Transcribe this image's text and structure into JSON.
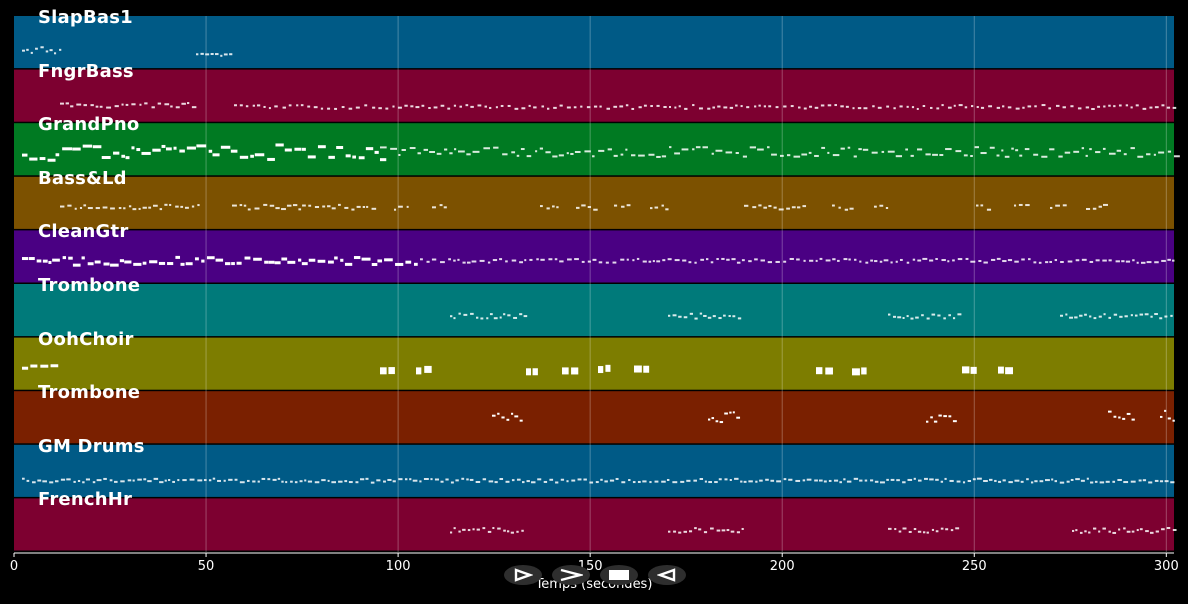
{
  "tracks": [
    {
      "name": "SlapBas1",
      "color": "#005a86"
    },
    {
      "name": "FngrBass",
      "color": "#7d0030"
    },
    {
      "name": "GrandPno",
      "color": "#007a22"
    },
    {
      "name": "Bass&Ld",
      "color": "#7c5100"
    },
    {
      "name": "CleanGtr",
      "color": "#4a0083"
    },
    {
      "name": "Trombone",
      "color": "#007a7a"
    },
    {
      "name": "OohChoir",
      "color": "#7d7d00"
    },
    {
      "name": "Trombone",
      "color": "#7a2000"
    },
    {
      "name": "GM Drums",
      "color": "#005a86"
    },
    {
      "name": "FrenchHr",
      "color": "#7d0030"
    }
  ],
  "axis": {
    "xlabel": "Temps (secondes)",
    "ticks": [
      "0",
      "50",
      "100",
      "150",
      "200",
      "250",
      "300"
    ],
    "tick_values": [
      0,
      50,
      100,
      150,
      200,
      250,
      300
    ],
    "xlim": [
      0,
      302
    ]
  },
  "controls": [
    {
      "name": "play-outline-icon"
    },
    {
      "name": "next-icon"
    },
    {
      "name": "stop-icon"
    },
    {
      "name": "back-icon"
    }
  ]
}
